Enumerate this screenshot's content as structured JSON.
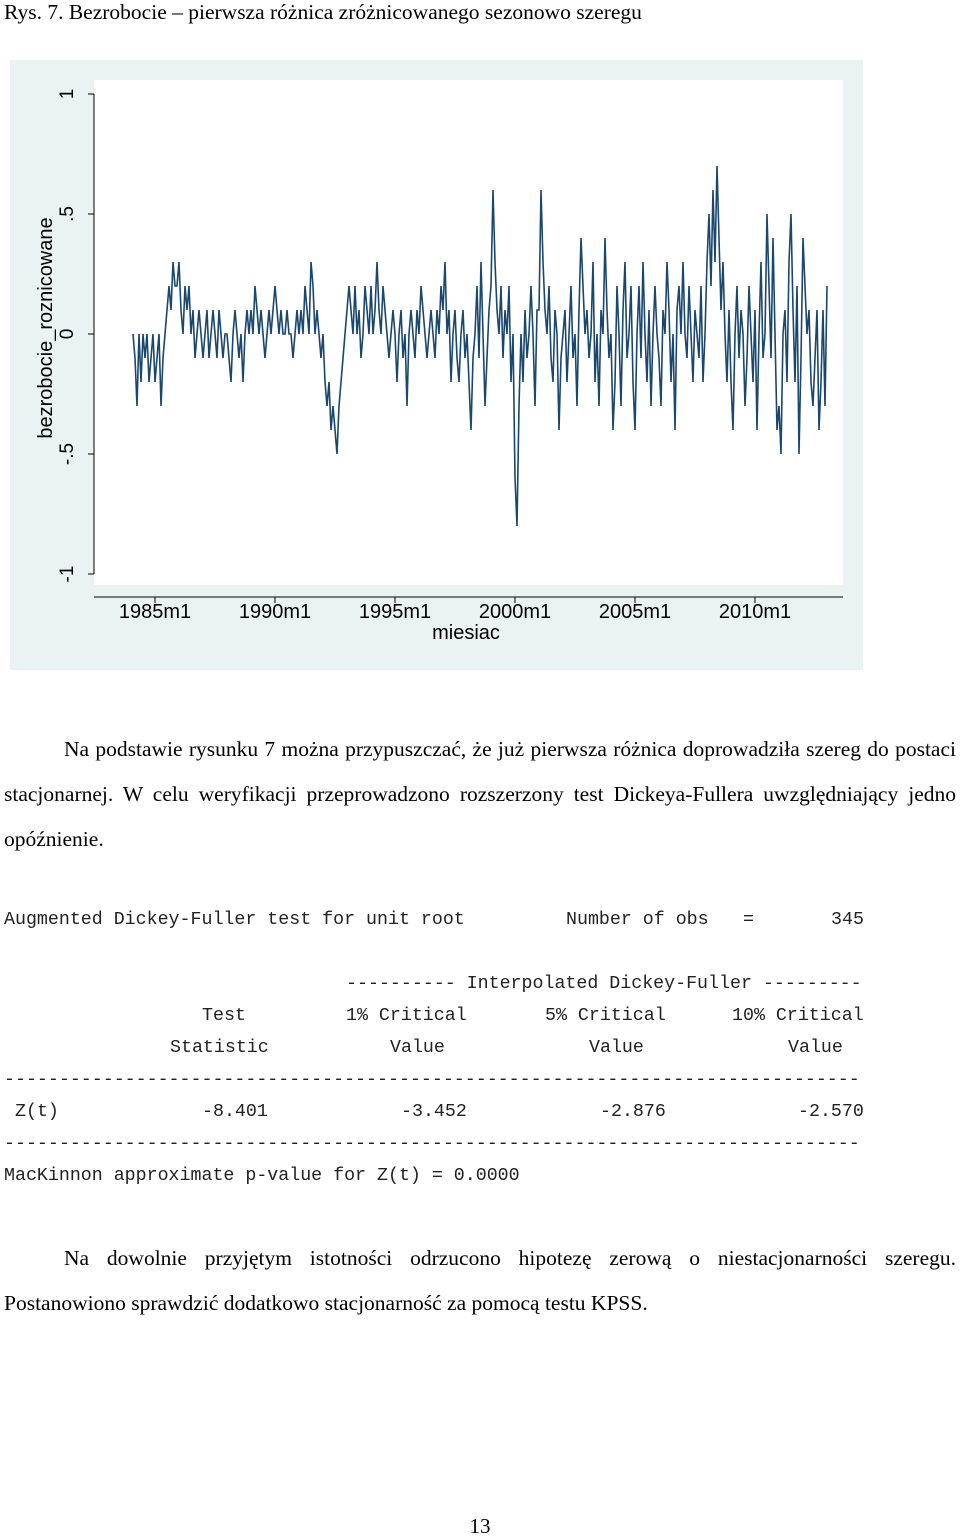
{
  "caption": "Rys. 7. Bezrobocie – pierwsza różnica zróżnicowanego sezonowo szeregu",
  "chart_data": {
    "type": "line",
    "ylabel": "bezrobocie_roznicowane",
    "xlabel": "miesiac",
    "color": "#1a476f",
    "background": "#eaf2f3",
    "plot_background": "#ffffff",
    "ylim": [
      -1,
      1
    ],
    "yticks": [
      -1,
      {
        "value": -0.5,
        "label": "-.5"
      },
      0,
      {
        "value": 0.5,
        "label": ".5"
      },
      1
    ],
    "xticks": [
      "1985m1",
      "1990m1",
      "1995m1",
      "2000m1",
      "2005m1",
      "2010m1"
    ],
    "x": [
      "1984m2",
      "1984m3",
      "1984m4",
      "1984m5",
      "1984m6",
      "1984m7",
      "1984m8",
      "1984m9",
      "1984m10",
      "1984m11",
      "1984m12",
      "1985m1",
      "1985m2",
      "1985m3",
      "1985m4",
      "1985m5",
      "1985m6",
      "1985m7",
      "1985m8",
      "1985m9",
      "1985m10",
      "1985m11",
      "1985m12",
      "1986m1",
      "1986m2",
      "1986m3",
      "1986m4",
      "1986m5",
      "1986m6",
      "1986m7",
      "1986m8",
      "1986m9",
      "1986m10",
      "1986m11",
      "1986m12",
      "1987m1",
      "1987m2",
      "1987m3",
      "1987m4",
      "1987m5",
      "1987m6",
      "1987m7",
      "1987m8",
      "1987m9",
      "1987m10",
      "1987m11",
      "1987m12",
      "1988m1",
      "1988m2",
      "1988m3",
      "1988m4",
      "1988m5",
      "1988m6",
      "1988m7",
      "1988m8",
      "1988m9",
      "1988m10",
      "1988m11",
      "1988m12",
      "1989m1",
      "1989m2",
      "1989m3",
      "1989m4",
      "1989m5",
      "1989m6",
      "1989m7",
      "1989m8",
      "1989m9",
      "1989m10",
      "1989m11",
      "1989m12",
      "1990m1",
      "1990m2",
      "1990m3",
      "1990m4",
      "1990m5",
      "1990m6",
      "1990m7",
      "1990m8",
      "1990m9",
      "1990m10",
      "1990m11",
      "1990m12",
      "1991m1",
      "1991m2",
      "1991m3",
      "1991m4",
      "1991m5",
      "1991m6",
      "1991m7",
      "1991m8",
      "1991m9",
      "1991m10",
      "1991m11",
      "1991m12",
      "1992m1",
      "1992m2",
      "1992m3",
      "1992m4",
      "1992m5",
      "1992m6",
      "1992m7",
      "1992m8",
      "1992m9",
      "1992m10",
      "1992m11",
      "1992m12",
      "1993m1",
      "1993m2",
      "1993m3",
      "1993m4",
      "1993m5",
      "1993m6",
      "1993m7",
      "1993m8",
      "1993m9",
      "1993m10",
      "1993m11",
      "1993m12",
      "1994m1",
      "1994m2",
      "1994m3",
      "1994m4",
      "1994m5",
      "1994m6",
      "1994m7",
      "1994m8",
      "1994m9",
      "1994m10",
      "1994m11",
      "1994m12",
      "1995m1",
      "1995m2",
      "1995m3",
      "1995m4",
      "1995m5",
      "1995m6",
      "1995m7",
      "1995m8",
      "1995m9",
      "1995m10",
      "1995m11",
      "1995m12",
      "1996m1",
      "1996m2",
      "1996m3",
      "1996m4",
      "1996m5",
      "1996m6",
      "1996m7",
      "1996m8",
      "1996m9",
      "1996m10",
      "1996m11",
      "1996m12",
      "1997m1",
      "1997m2",
      "1997m3",
      "1997m4",
      "1997m5",
      "1997m6",
      "1997m7",
      "1997m8",
      "1997m9",
      "1997m10",
      "1997m11",
      "1997m12",
      "1998m1",
      "1998m2",
      "1998m3",
      "1998m4",
      "1998m5",
      "1998m6",
      "1998m7",
      "1998m8",
      "1998m9",
      "1998m10",
      "1998m11",
      "1998m12",
      "1999m1",
      "1999m2",
      "1999m3",
      "1999m4",
      "1999m5",
      "1999m6",
      "1999m7",
      "1999m8",
      "1999m9",
      "1999m10",
      "1999m11",
      "1999m12",
      "2000m1",
      "2000m2",
      "2000m3",
      "2000m4",
      "2000m5",
      "2000m6",
      "2000m7",
      "2000m8",
      "2000m9",
      "2000m10",
      "2000m11",
      "2000m12",
      "2001m1",
      "2001m2",
      "2001m3",
      "2001m4",
      "2001m5",
      "2001m6",
      "2001m7",
      "2001m8",
      "2001m9",
      "2001m10",
      "2001m11",
      "2001m12",
      "2002m1",
      "2002m2",
      "2002m3",
      "2002m4",
      "2002m5",
      "2002m6",
      "2002m7",
      "2002m8",
      "2002m9",
      "2002m10",
      "2002m11",
      "2002m12",
      "2003m1",
      "2003m2",
      "2003m3",
      "2003m4",
      "2003m5",
      "2003m6",
      "2003m7",
      "2003m8",
      "2003m9",
      "2003m10",
      "2003m11",
      "2003m12",
      "2004m1",
      "2004m2",
      "2004m3",
      "2004m4",
      "2004m5",
      "2004m6",
      "2004m7",
      "2004m8",
      "2004m9",
      "2004m10",
      "2004m11",
      "2004m12",
      "2005m1",
      "2005m2",
      "2005m3",
      "2005m4",
      "2005m5",
      "2005m6",
      "2005m7",
      "2005m8",
      "2005m9",
      "2005m10",
      "2005m11",
      "2005m12",
      "2006m1",
      "2006m2",
      "2006m3",
      "2006m4",
      "2006m5",
      "2006m6",
      "2006m7",
      "2006m8",
      "2006m9",
      "2006m10",
      "2006m11",
      "2006m12",
      "2007m1",
      "2007m2",
      "2007m3",
      "2007m4",
      "2007m5",
      "2007m6",
      "2007m7",
      "2007m8",
      "2007m9",
      "2007m10",
      "2007m11",
      "2007m12",
      "2008m1",
      "2008m2",
      "2008m3",
      "2008m4",
      "2008m5",
      "2008m6",
      "2008m7",
      "2008m8",
      "2008m9",
      "2008m10",
      "2008m11",
      "2008m12",
      "2009m1",
      "2009m2",
      "2009m3",
      "2009m4",
      "2009m5",
      "2009m6",
      "2009m7",
      "2009m8",
      "2009m9",
      "2009m10",
      "2009m11",
      "2009m12",
      "2010m1",
      "2010m2",
      "2010m3",
      "2010m4",
      "2010m5",
      "2010m6",
      "2010m7",
      "2010m8",
      "2010m9",
      "2010m10",
      "2010m11",
      "2010m12",
      "2011m1",
      "2011m2",
      "2011m3",
      "2011m4",
      "2011m5",
      "2011m6",
      "2011m7",
      "2011m8",
      "2011m9",
      "2011m10",
      "2011m11",
      "2011m12",
      "2012m1",
      "2012m2",
      "2012m3",
      "2012m4",
      "2012m5",
      "2012m6",
      "2012m7",
      "2012m8",
      "2012m9",
      "2012m10",
      "2012m11",
      "2012m12",
      "2013m1"
    ],
    "values": [
      0,
      -0.1,
      -0.3,
      0,
      -0.2,
      0,
      -0.1,
      0,
      -0.2,
      -0.1,
      0,
      -0.2,
      -0.1,
      0,
      -0.3,
      -0.1,
      0,
      0.1,
      0.2,
      0.1,
      0.3,
      0.2,
      0.2,
      0.3,
      0.1,
      0,
      0.2,
      0.1,
      0.2,
      0,
      0.1,
      -0.1,
      0,
      0.1,
      0,
      -0.1,
      0,
      0.1,
      -0.1,
      0,
      0.1,
      0,
      -0.1,
      0.1,
      0,
      -0.1,
      0,
      0,
      -0.1,
      -0.2,
      0,
      0.1,
      0,
      -0.1,
      0,
      -0.2,
      0,
      0.1,
      0,
      0.1,
      0,
      0.2,
      0.1,
      0,
      0.1,
      0,
      -0.1,
      0,
      0.1,
      0,
      0.1,
      0.2,
      0.1,
      0,
      0.1,
      0,
      0,
      0.1,
      0,
      0,
      -0.1,
      0,
      0.1,
      0,
      0.1,
      0,
      0.2,
      0.1,
      0,
      0.3,
      0.2,
      0,
      0.1,
      0,
      -0.1,
      0,
      -0.2,
      -0.3,
      -0.2,
      -0.4,
      -0.3,
      -0.4,
      -0.5,
      -0.3,
      -0.2,
      -0.1,
      0,
      0.1,
      0.2,
      0.1,
      0,
      0.2,
      0,
      0.1,
      -0.1,
      0,
      0.2,
      0.1,
      0,
      0.2,
      0,
      0.1,
      0.3,
      0.1,
      0,
      0.2,
      0.1,
      0,
      -0.1,
      0,
      0.1,
      0,
      -0.2,
      0,
      0.1,
      -0.1,
      0,
      -0.3,
      0,
      0.1,
      0,
      -0.1,
      0.1,
      0,
      0.2,
      0.1,
      0,
      -0.1,
      0,
      0.1,
      0,
      -0.1,
      0.1,
      0,
      0.2,
      0.1,
      0.3,
      0,
      0.1,
      -0.2,
      0,
      0.1,
      -0.1,
      -0.2,
      0,
      0.1,
      -0.1,
      0,
      -0.2,
      -0.4,
      -0.1,
      0,
      0.2,
      -0.1,
      0.3,
      0,
      -0.3,
      -0.1,
      0.1,
      0.2,
      0.6,
      0.3,
      0.1,
      0,
      0.2,
      -0.1,
      0.1,
      0,
      0.2,
      -0.2,
      0,
      -0.6,
      -0.8,
      -0.3,
      0,
      -0.2,
      0.1,
      -0.1,
      0,
      0.2,
      0,
      -0.3,
      0.1,
      0.1,
      0.6,
      0.3,
      0.1,
      0,
      0.2,
      -0.1,
      -0.2,
      0.1,
      0,
      -0.4,
      -0.1,
      0,
      0.1,
      -0.2,
      0,
      0.2,
      -0.1,
      0,
      -0.3,
      0.1,
      0.4,
      0.2,
      0,
      0.1,
      -0.1,
      0,
      0.3,
      -0.2,
      0,
      -0.3,
      0.1,
      0,
      0.4,
      0.1,
      -0.1,
      0,
      -0.4,
      -0.2,
      0.2,
      0,
      -0.3,
      0.1,
      0.3,
      -0.1,
      0,
      0.2,
      -0.2,
      -0.4,
      0,
      0.2,
      -0.1,
      0.3,
      0,
      -0.2,
      0.1,
      -0.3,
      0,
      0.2,
      0,
      -0.1,
      -0.3,
      0.1,
      0,
      0.3,
      0.1,
      -0.2,
      0,
      -0.4,
      0.1,
      0.2,
      0,
      0.3,
      0,
      -0.1,
      0.2,
      0,
      -0.2,
      0.1,
      0,
      -0.1,
      0.2,
      -0.2,
      0,
      0.3,
      0.5,
      0.2,
      0.6,
      0.3,
      0.7,
      0.4,
      0.1,
      0.3,
      0,
      -0.2,
      0.1,
      -0.2,
      -0.4,
      0,
      0.2,
      -0.1,
      0.1,
      0,
      -0.3,
      -0.1,
      0.2,
      0,
      -0.2,
      0.1,
      -0.4,
      0,
      0.3,
      -0.1,
      0,
      0.5,
      0.2,
      -0.1,
      0.4,
      0,
      -0.4,
      -0.3,
      -0.5,
      0,
      0.1,
      -0.2,
      0.3,
      0.5,
      0.1,
      -0.2,
      0.2,
      -0.5,
      -0.1,
      0.4,
      0.2,
      0,
      0.1,
      -0.2,
      -0.3,
      -0.1,
      0.1,
      -0.4,
      -0.2,
      0.1,
      -0.3,
      0.2
    ]
  },
  "paragraph1": "Na podstawie rysunku 7 można przypuszczać, że już pierwsza różnica doprowadziła szereg do postaci stacjonarnej. W celu weryfikacji przeprowadzono rozszerzony test Dickeya-Fullera uwzględniający jedno opóźnienie.",
  "dfuller": {
    "title": "Augmented Dickey-Fuller test for unit root",
    "obs_label": "Number of obs",
    "obs_eq": "=",
    "obs_value": "345",
    "group_header": "---------- Interpolated Dickey-Fuller ---------",
    "head1": [
      "Test",
      "1% Critical",
      "5% Critical",
      "10% Critical"
    ],
    "head2": [
      "Statistic",
      "Value",
      "Value",
      "Value"
    ],
    "rule": "------------------------------------------------------------------------------",
    "row": [
      "Z(t)",
      "-8.401",
      "-3.452",
      "-2.876",
      "-2.570"
    ],
    "footer": "MacKinnon approximate p-value for Z(t) = 0.0000"
  },
  "paragraph2": "Na dowolnie przyjętym istotności odrzucono hipotezę zerową o niestacjonarności szeregu. Postanowiono sprawdzić dodatkowo stacjonarność za pomocą testu KPSS.",
  "page_number": "13"
}
